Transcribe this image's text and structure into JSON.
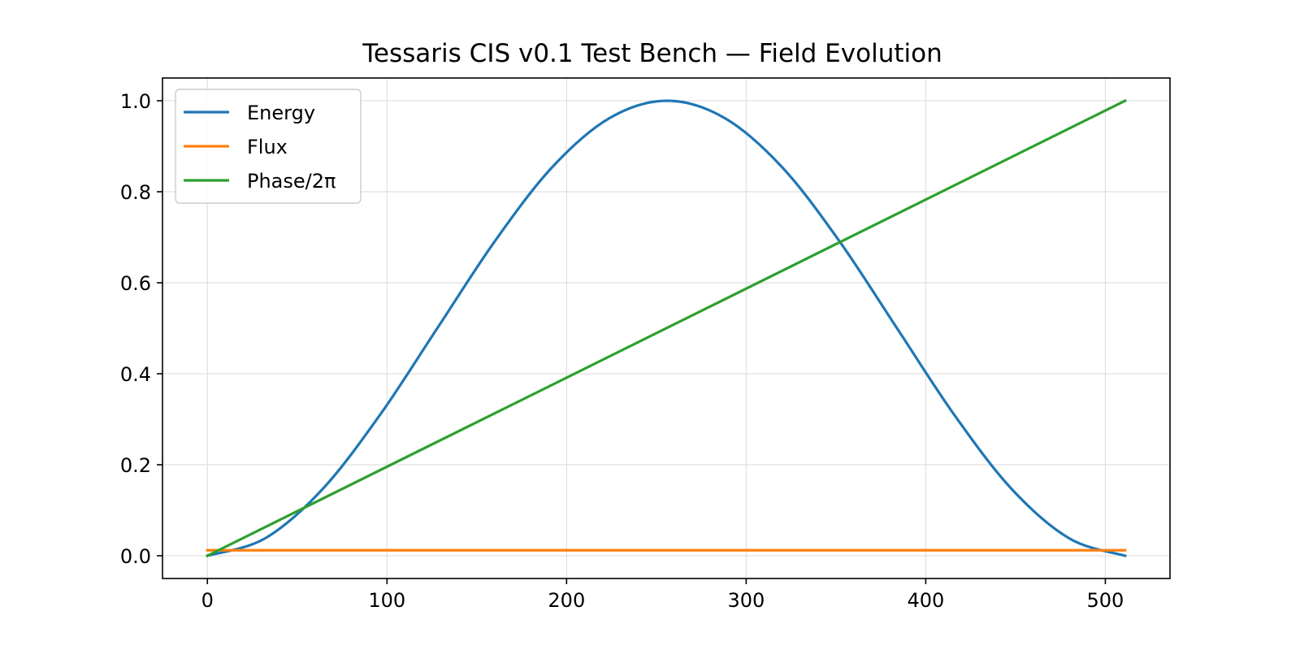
{
  "chart_data": {
    "type": "line",
    "title": "Tessaris CIS v0.1 Test Bench — Field Evolution",
    "xlabel": "",
    "ylabel": "",
    "xlim": [
      -25,
      536
    ],
    "ylim": [
      -0.05,
      1.05
    ],
    "x_ticks": [
      0,
      100,
      200,
      300,
      400,
      500
    ],
    "y_ticks": [
      0.0,
      0.2,
      0.4,
      0.6,
      0.8,
      1.0
    ],
    "x_tick_labels": [
      "0",
      "100",
      "200",
      "300",
      "400",
      "500"
    ],
    "y_tick_labels": [
      "0.0",
      "0.2",
      "0.4",
      "0.6",
      "0.8",
      "1.0"
    ],
    "grid": true,
    "legend_position": "top-left",
    "x_range": [
      0,
      511
    ],
    "series": [
      {
        "name": "Energy",
        "color": "#1f77b4",
        "x": [
          0,
          32,
          64,
          96,
          128,
          160,
          192,
          224,
          256,
          288,
          320,
          352,
          384,
          416,
          448,
          480,
          511
        ],
        "values": [
          0.0,
          0.038,
          0.146,
          0.309,
          0.5,
          0.691,
          0.854,
          0.962,
          1.0,
          0.962,
          0.854,
          0.691,
          0.5,
          0.309,
          0.146,
          0.038,
          0.0
        ]
      },
      {
        "name": "Flux",
        "color": "#ff7f0e",
        "x": [
          0,
          511
        ],
        "values": [
          0.012,
          0.012
        ]
      },
      {
        "name": "Phase/2π",
        "color": "#2ca02c",
        "x": [
          0,
          511
        ],
        "values": [
          0.0,
          1.0
        ]
      }
    ]
  }
}
